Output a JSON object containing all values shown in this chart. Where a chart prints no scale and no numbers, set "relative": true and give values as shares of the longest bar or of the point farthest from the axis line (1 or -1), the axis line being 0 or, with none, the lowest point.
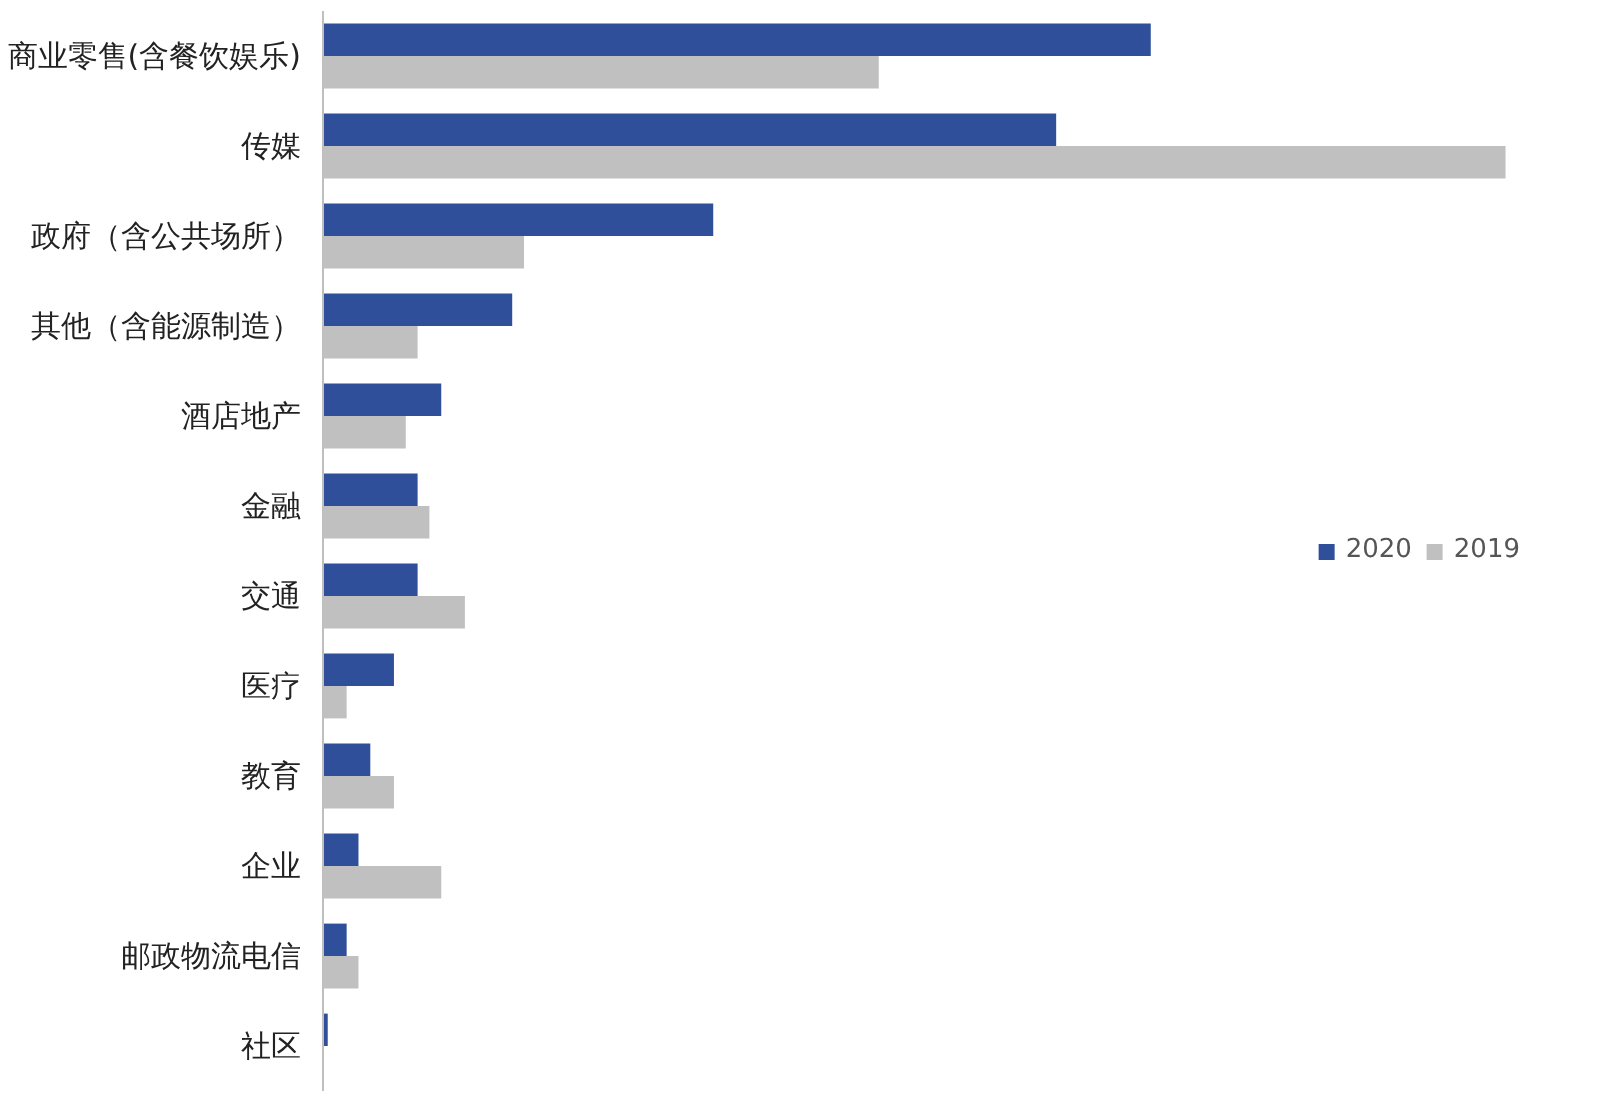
{
  "chart_data": {
    "type": "bar",
    "orientation": "horizontal",
    "relative": true,
    "legend": "right",
    "grid": false,
    "categories": [
      "商业零售(含餐饮娱乐)",
      "传媒",
      "政府（含公共场所）",
      "其他（含能源制造）",
      "酒店地产",
      "金融",
      "交通",
      "医疗",
      "教育",
      "企业",
      "邮政物流电信",
      "社区"
    ],
    "series": [
      {
        "name": "2020",
        "color": "#2f4f9a",
        "values": [
          0.7,
          0.62,
          0.33,
          0.16,
          0.1,
          0.08,
          0.08,
          0.06,
          0.04,
          0.03,
          0.02,
          0.004
        ]
      },
      {
        "name": "2019",
        "color": "#c0c0c0",
        "values": [
          0.47,
          1,
          0.17,
          0.08,
          0.07,
          0.09,
          0.12,
          0.02,
          0.06,
          0.1,
          0.03,
          0
        ]
      }
    ]
  }
}
